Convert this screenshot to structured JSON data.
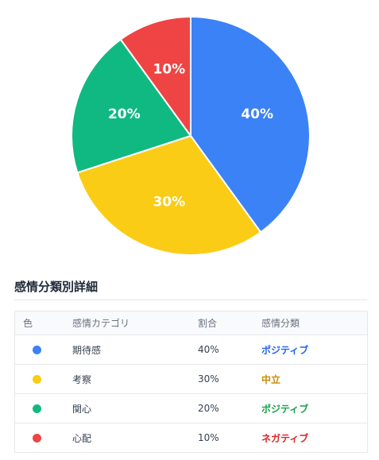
{
  "chart_data": {
    "type": "pie",
    "slices": [
      {
        "label": "期待感",
        "value": 40,
        "display": "40%",
        "color": "#3b82f6"
      },
      {
        "label": "考察",
        "value": 30,
        "display": "30%",
        "color": "#facc15"
      },
      {
        "label": "関心",
        "value": 20,
        "display": "20%",
        "color": "#10b981"
      },
      {
        "label": "心配",
        "value": 10,
        "display": "10%",
        "color": "#ef4444"
      }
    ]
  },
  "section": {
    "title": "感情分類別詳細"
  },
  "table": {
    "headers": [
      "色",
      "感情カテゴリ",
      "割合",
      "感情分類"
    ],
    "rows": [
      {
        "color": "#3b82f6",
        "category": "期待感",
        "ratio": "40%",
        "classification": "ポジティブ",
        "class_color": "#2563eb"
      },
      {
        "color": "#facc15",
        "category": "考察",
        "ratio": "30%",
        "classification": "中立",
        "class_color": "#ca8a04"
      },
      {
        "color": "#10b981",
        "category": "関心",
        "ratio": "20%",
        "classification": "ポジティブ",
        "class_color": "#16a34a"
      },
      {
        "color": "#ef4444",
        "category": "心配",
        "ratio": "10%",
        "classification": "ネガティブ",
        "class_color": "#dc2626"
      }
    ]
  }
}
